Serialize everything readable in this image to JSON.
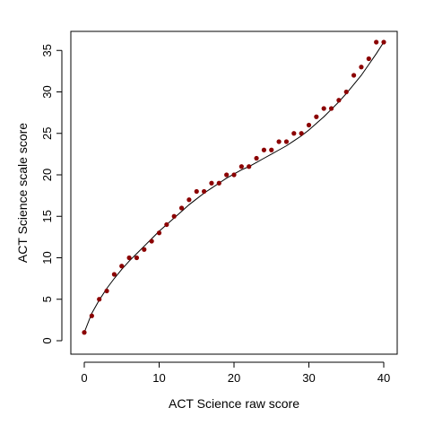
{
  "chart_data": {
    "type": "scatter",
    "title": "",
    "xlabel": "ACT Science raw score",
    "ylabel": "ACT Science scale score",
    "xlim": [
      0,
      40
    ],
    "ylim": [
      0,
      36
    ],
    "x_ticks": [
      0,
      10,
      20,
      30,
      40
    ],
    "y_ticks": [
      0,
      5,
      10,
      15,
      20,
      25,
      30,
      35
    ],
    "x_tick_labels": [
      "0",
      "10",
      "20",
      "30",
      "40"
    ],
    "y_tick_labels": [
      "0",
      "5",
      "10",
      "15",
      "20",
      "25",
      "30",
      "35"
    ],
    "grid": false,
    "legend": "none",
    "points": {
      "color": "#8b0000",
      "x": [
        0,
        1,
        2,
        3,
        4,
        5,
        6,
        7,
        8,
        9,
        10,
        11,
        12,
        13,
        14,
        15,
        16,
        17,
        18,
        19,
        20,
        21,
        22,
        23,
        24,
        25,
        26,
        27,
        28,
        29,
        30,
        31,
        32,
        33,
        34,
        35,
        36,
        37,
        38,
        39,
        40
      ],
      "y": [
        1,
        3,
        5,
        6,
        8,
        9,
        10,
        10,
        11,
        12,
        13,
        14,
        15,
        16,
        17,
        18,
        18,
        19,
        19,
        20,
        20,
        21,
        21,
        22,
        23,
        23,
        24,
        24,
        25,
        25,
        26,
        27,
        28,
        28,
        29,
        30,
        32,
        33,
        34,
        36,
        36
      ]
    },
    "fit_curve": {
      "color": "#000000",
      "x": [
        0,
        1,
        2,
        3,
        4,
        5,
        6,
        7,
        8,
        9,
        10,
        11,
        12,
        13,
        14,
        15,
        16,
        17,
        18,
        19,
        20,
        21,
        22,
        23,
        24,
        25,
        26,
        27,
        28,
        29,
        30,
        31,
        32,
        33,
        34,
        35,
        36,
        37,
        38,
        39,
        40
      ],
      "y": [
        1.0,
        3.3,
        4.9,
        6.3,
        7.5,
        8.6,
        9.6,
        10.5,
        11.4,
        12.3,
        13.2,
        14.0,
        14.8,
        15.6,
        16.4,
        17.1,
        17.8,
        18.4,
        19.0,
        19.6,
        20.1,
        20.6,
        21.0,
        21.5,
        22.0,
        22.5,
        23.0,
        23.5,
        24.1,
        24.7,
        25.4,
        26.2,
        27.0,
        27.9,
        28.8,
        29.8,
        30.9,
        32.0,
        33.3,
        34.6,
        36.0
      ]
    }
  }
}
